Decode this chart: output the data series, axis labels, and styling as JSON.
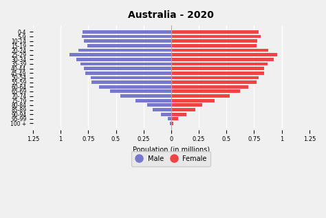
{
  "title": "Australia - 2020",
  "xlabel": "Population (in millions)",
  "age_groups": [
    "100 +",
    "95-99",
    "90-94",
    "85-89",
    "80-84",
    "75-79",
    "70-74",
    "65-69",
    "60-64",
    "55-59",
    "50-54",
    "45-49",
    "40-44",
    "35-39",
    "30-34",
    "25-29",
    "20-24",
    "15-19",
    "10-14",
    "5-9",
    "0-4"
  ],
  "male": [
    0.01,
    0.03,
    0.09,
    0.17,
    0.22,
    0.32,
    0.46,
    0.55,
    0.65,
    0.72,
    0.73,
    0.78,
    0.79,
    0.82,
    0.86,
    0.92,
    0.84,
    0.76,
    0.79,
    0.81,
    0.8
  ],
  "female": [
    0.02,
    0.06,
    0.14,
    0.22,
    0.28,
    0.39,
    0.53,
    0.62,
    0.7,
    0.77,
    0.79,
    0.84,
    0.84,
    0.87,
    0.93,
    0.96,
    0.88,
    0.77,
    0.78,
    0.81,
    0.79
  ],
  "male_color": "#7777cc",
  "female_color": "#ee4444",
  "xlim": 1.25,
  "background_color": "#f0f0f0",
  "grid_color": "#ffffff",
  "legend_bg": "#e8e8e8",
  "xticks": [
    -1.25,
    -1.0,
    -0.75,
    -0.5,
    -0.25,
    0,
    0.25,
    0.5,
    0.75,
    1.0,
    1.25
  ],
  "xtick_labels": [
    "1.25",
    "1",
    "0.75",
    "0.5",
    "0.25",
    "0",
    "0.25",
    "0.5",
    "0.75",
    "1",
    "1.25"
  ]
}
